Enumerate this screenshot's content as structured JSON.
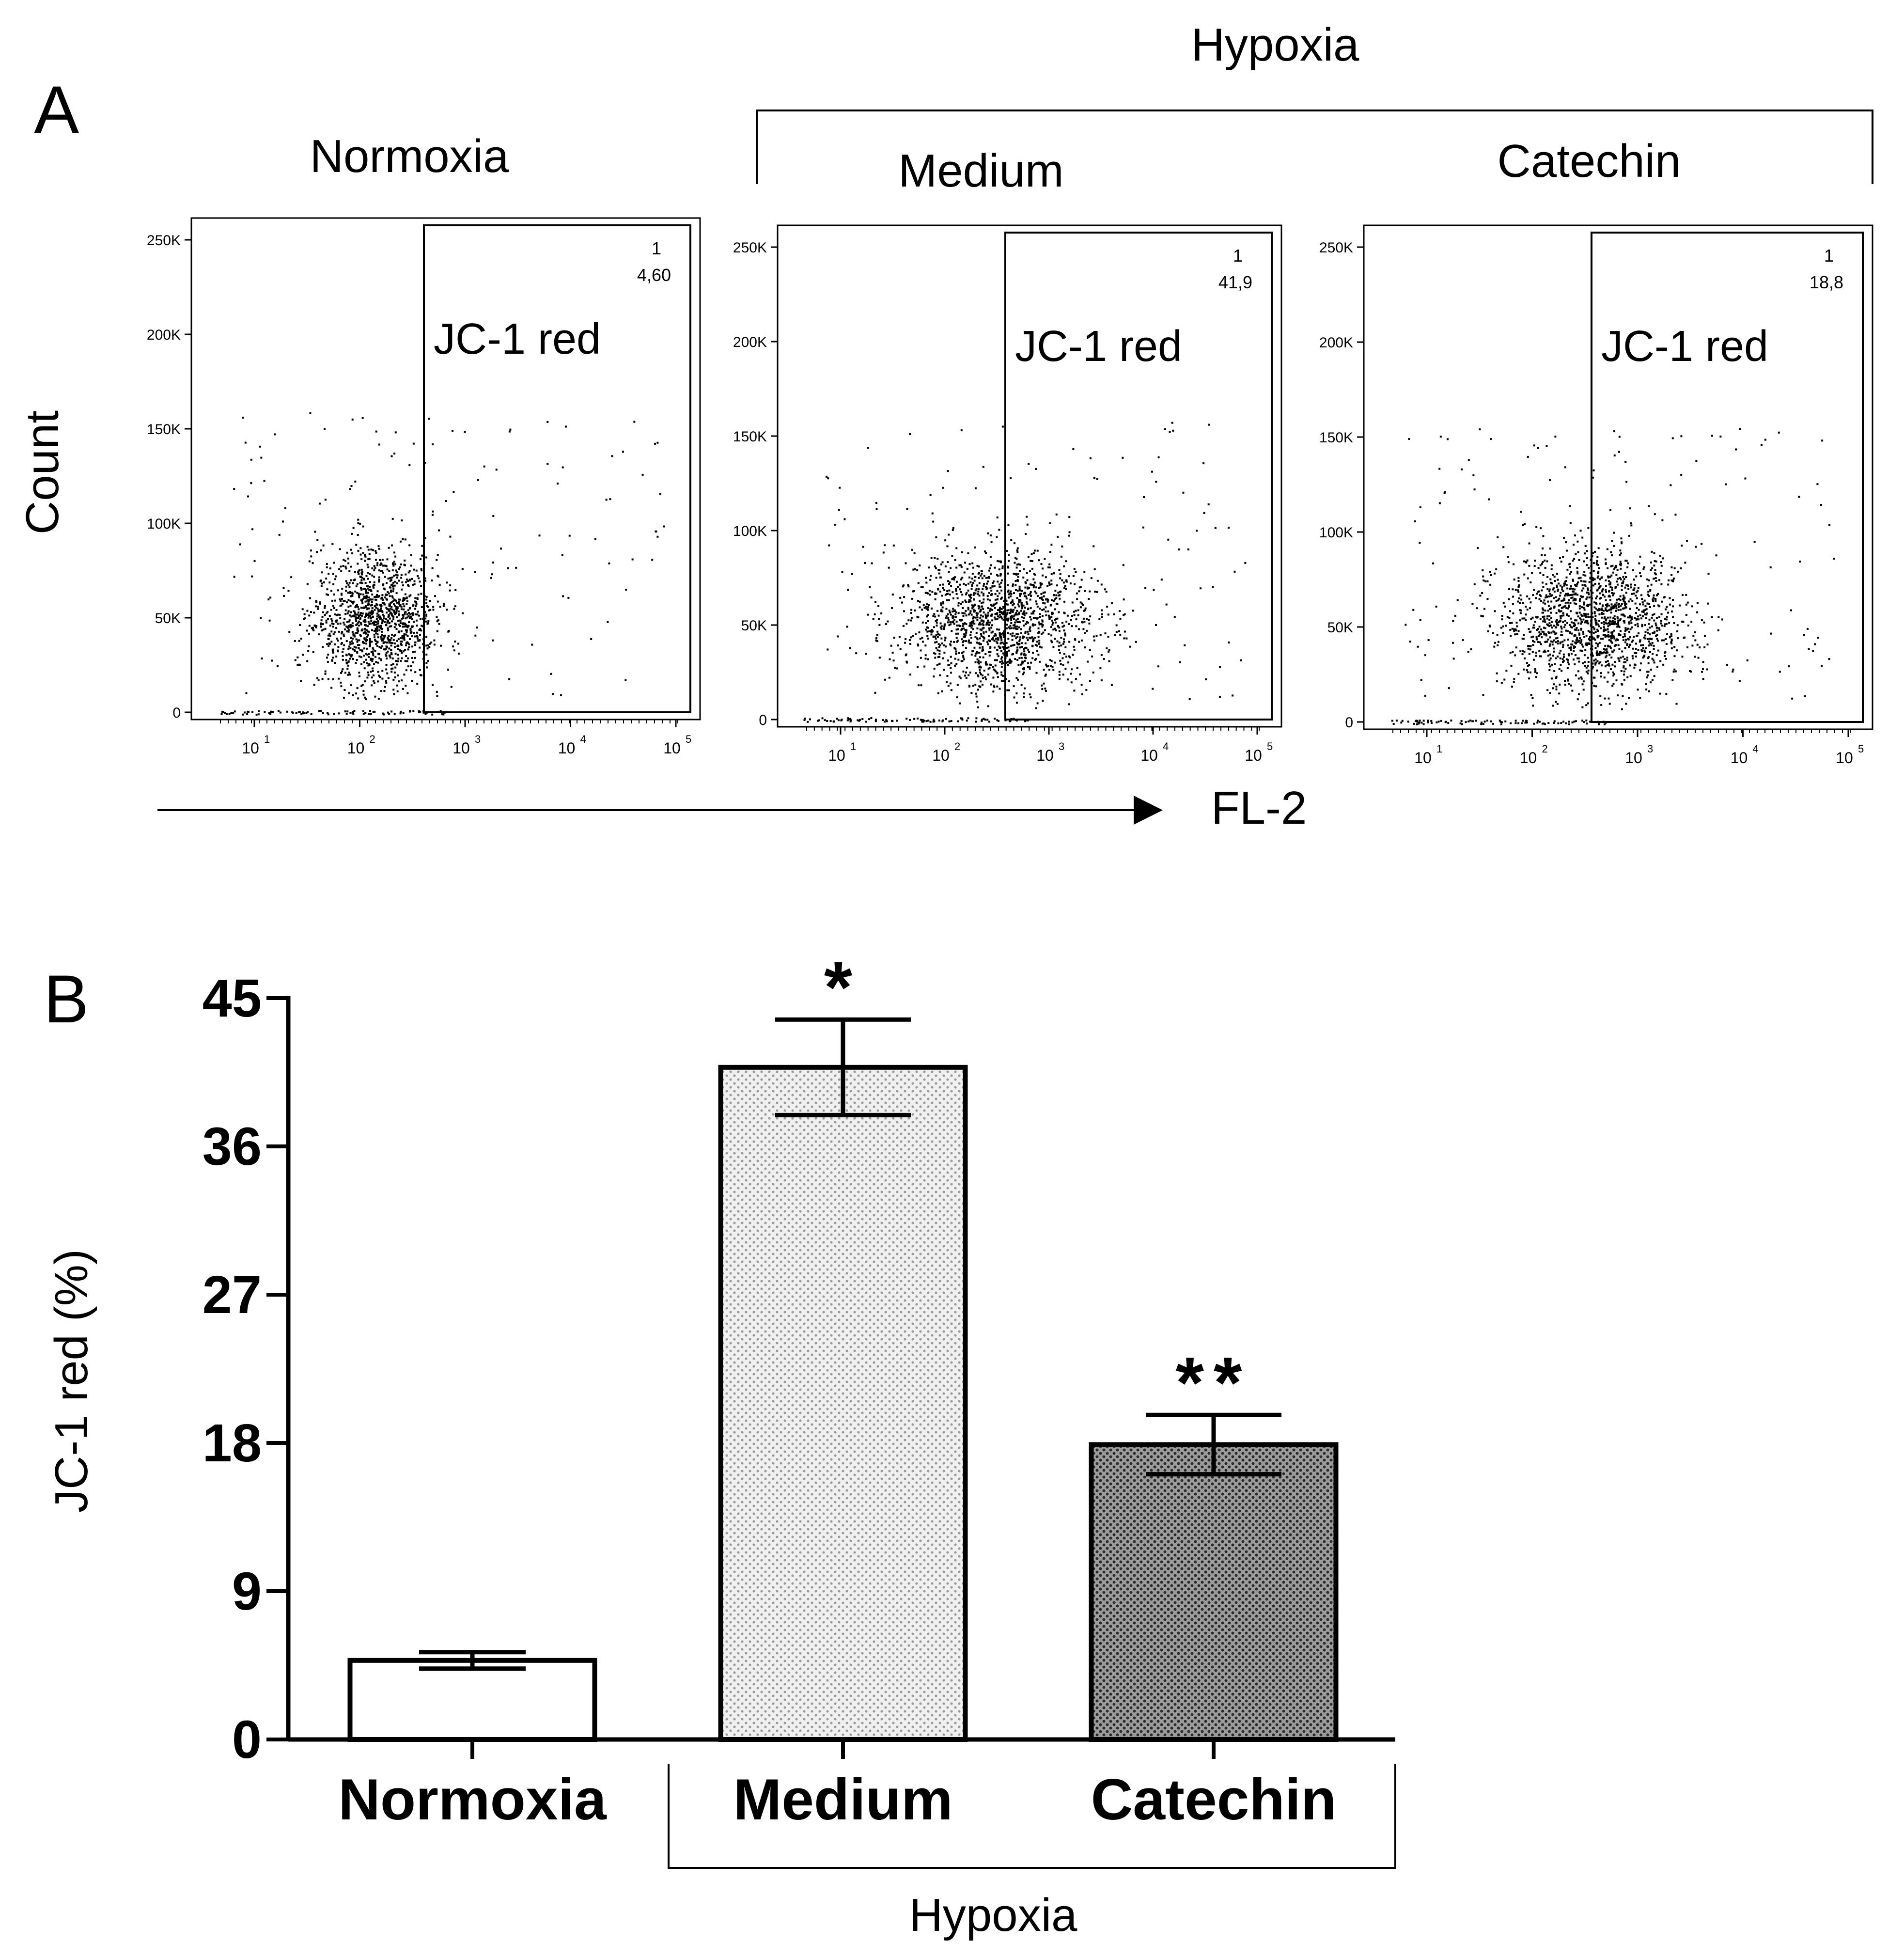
{
  "panel_a": {
    "letter": "A",
    "group_label": "Hypoxia",
    "y_axis_label": "Count",
    "x_axis_label": "FL-2",
    "y_ticks": [
      "250K",
      "200K",
      "150K",
      "100K",
      "50K",
      "0"
    ],
    "x_ticks": [
      "10",
      "10",
      "10",
      "10",
      "10"
    ],
    "x_tick_exponents": [
      "1",
      "2",
      "3",
      "4",
      "5"
    ],
    "plots": [
      {
        "title": "Normoxia",
        "gate_label": "JC-1 red",
        "gate_id": "1",
        "gate_value": "4,60",
        "gate_pct": 4.6
      },
      {
        "title": "Medium",
        "gate_label": "JC-1 red",
        "gate_id": "1",
        "gate_value": "41,9",
        "gate_pct": 41.9
      },
      {
        "title": "Catechin",
        "gate_label": "JC-1 red",
        "gate_id": "1",
        "gate_value": "18,8",
        "gate_pct": 18.8
      }
    ]
  },
  "panel_b": {
    "letter": "B",
    "group_label": "Hypoxia"
  },
  "chart_data": {
    "type": "bar",
    "title": "",
    "xlabel": "",
    "ylabel": "JC-1 red (%)",
    "ylim": [
      0,
      45
    ],
    "yticks": [
      0,
      9,
      18,
      27,
      36,
      45
    ],
    "categories": [
      "Normoxia",
      "Medium",
      "Catechin"
    ],
    "values": [
      4.8,
      40.8,
      17.9
    ],
    "errors": [
      0.5,
      2.9,
      1.8
    ],
    "significance": [
      "",
      "*",
      "**"
    ],
    "bracket": {
      "label": "Hypoxia",
      "spans": [
        "Medium",
        "Catechin"
      ]
    }
  }
}
